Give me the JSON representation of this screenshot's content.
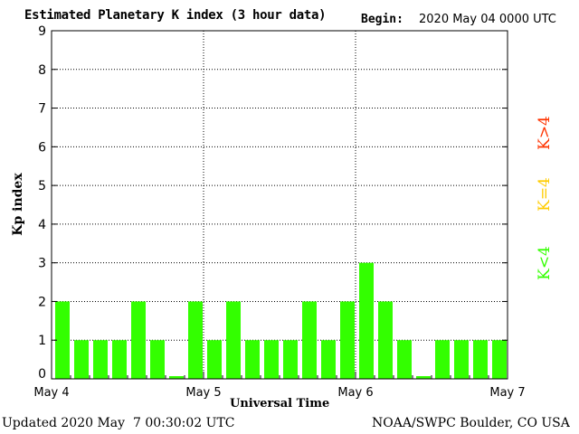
{
  "chart_data": {
    "type": "bar",
    "title": "Estimated Planetary K index (3 hour data)",
    "begin_label": "Begin:",
    "begin_value": "2020 May 04 0000 UTC",
    "xlabel": "Universal Time",
    "ylabel": "Kp index",
    "ylim": [
      0,
      9
    ],
    "yticks": [
      "0",
      "1",
      "2",
      "3",
      "4",
      "5",
      "6",
      "7",
      "8",
      "9"
    ],
    "day_labels": [
      "May 4",
      "May 5",
      "May 6",
      "May 7"
    ],
    "values": [
      2,
      1,
      1,
      1,
      2,
      1,
      0.07,
      2,
      1,
      2,
      1,
      1,
      1,
      2,
      1,
      2,
      3,
      2,
      1,
      0.07,
      1,
      1,
      1,
      1
    ],
    "bar_color": "#33ff00",
    "grid": "dotted",
    "legend": [
      {
        "label": "K<4",
        "color": "#33ff00"
      },
      {
        "label": "K=4",
        "color": "#ffcc00"
      },
      {
        "label": "K>4",
        "color": "#ff3300"
      }
    ]
  },
  "footer": {
    "updated": "Updated 2020 May  7 00:30:02 UTC",
    "credit": "NOAA/SWPC Boulder, CO USA"
  }
}
